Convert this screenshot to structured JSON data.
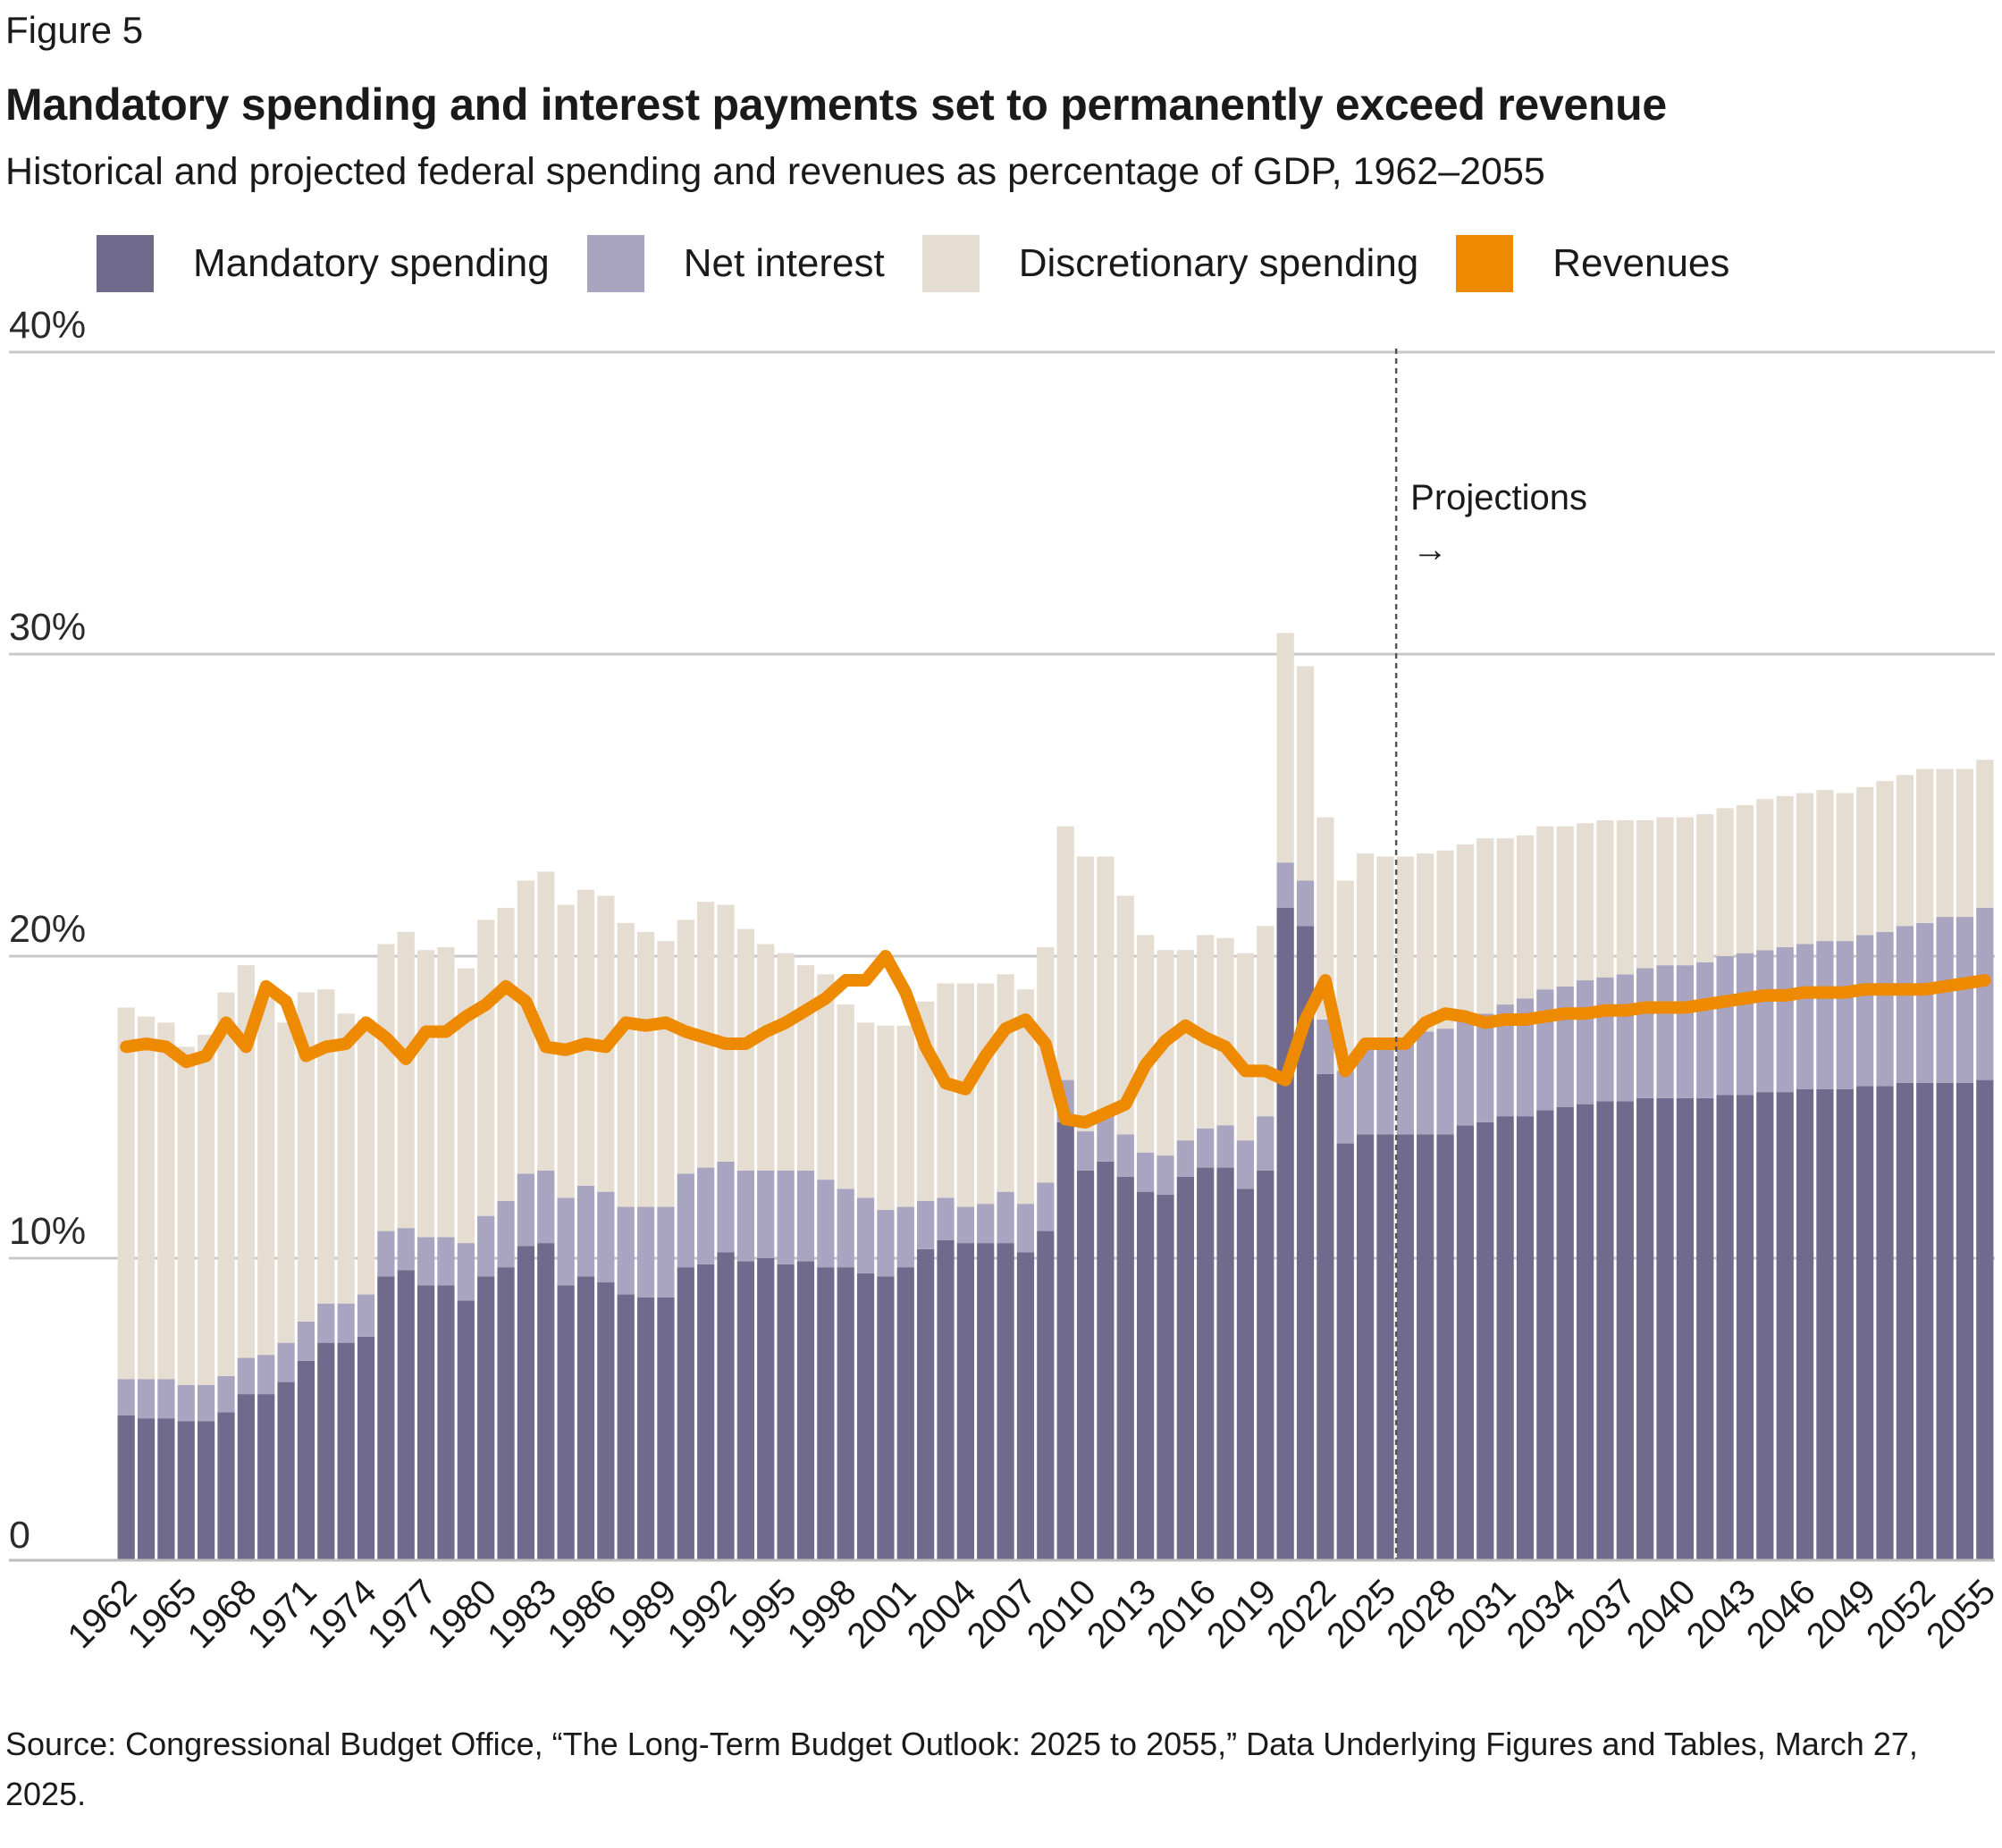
{
  "figure_label": "Figure 5",
  "colors": {
    "mandatory": "#706a8c",
    "net_interest": "#a9a4bf",
    "discretionary": "#e6ddd2",
    "revenues": "#ee8a00",
    "grid": "#c8c8c8",
    "projection_line": "#555555"
  },
  "source_text": "Source: Congressional Budget Office, “The Long-Term Budget Outlook: 2025 to 2055,” Data Underlying Figures and Tables, March 27, 2025.",
  "chart_data": {
    "type": "bar",
    "title": "Mandatory spending and interest payments set to permanently exceed revenue",
    "subtitle": "Historical and projected federal spending and revenues as percentage of GDP, 1962–2055",
    "xlabel": "",
    "ylabel": "",
    "ylim": [
      0,
      40
    ],
    "yticks": [
      0,
      10,
      20,
      30,
      40
    ],
    "ytick_labels": [
      "0",
      "10%",
      "20%",
      "30%",
      "40%"
    ],
    "xtick_labels": [
      "1962",
      "1965",
      "1968",
      "1971",
      "1974",
      "1977",
      "1980",
      "1983",
      "1986",
      "1989",
      "1992",
      "1995",
      "1998",
      "2001",
      "2004",
      "2007",
      "2010",
      "2013",
      "2016",
      "2019",
      "2022",
      "2025",
      "2028",
      "2031",
      "2034",
      "2037",
      "2040",
      "2043",
      "2046",
      "2049",
      "2052",
      "2055"
    ],
    "grid": true,
    "legend_position": "top",
    "stacked": true,
    "projection_start": 2025,
    "projection_label": "Projections",
    "projection_arrow": "→",
    "x": [
      1962,
      1963,
      1964,
      1965,
      1966,
      1967,
      1968,
      1969,
      1970,
      1971,
      1972,
      1973,
      1974,
      1975,
      1976,
      1977,
      1978,
      1979,
      1980,
      1981,
      1982,
      1983,
      1984,
      1985,
      1986,
      1987,
      1988,
      1989,
      1990,
      1991,
      1992,
      1993,
      1994,
      1995,
      1996,
      1997,
      1998,
      1999,
      2000,
      2001,
      2002,
      2003,
      2004,
      2005,
      2006,
      2007,
      2008,
      2009,
      2010,
      2011,
      2012,
      2013,
      2014,
      2015,
      2016,
      2017,
      2018,
      2019,
      2020,
      2021,
      2022,
      2023,
      2024,
      2025,
      2026,
      2027,
      2028,
      2029,
      2030,
      2031,
      2032,
      2033,
      2034,
      2035,
      2036,
      2037,
      2038,
      2039,
      2040,
      2041,
      2042,
      2043,
      2044,
      2045,
      2046,
      2047,
      2048,
      2049,
      2050,
      2051,
      2052,
      2053,
      2054,
      2055
    ],
    "series": [
      {
        "name": "Mandatory spending",
        "kind": "bar",
        "values": [
          4.8,
          4.7,
          4.7,
          4.6,
          4.6,
          4.9,
          5.5,
          5.5,
          5.9,
          6.6,
          7.2,
          7.2,
          7.4,
          9.4,
          9.6,
          9.1,
          9.1,
          8.6,
          9.4,
          9.7,
          10.4,
          10.5,
          9.1,
          9.4,
          9.2,
          8.8,
          8.7,
          8.7,
          9.7,
          9.8,
          10.2,
          9.9,
          10.0,
          9.8,
          9.9,
          9.7,
          9.7,
          9.5,
          9.4,
          9.7,
          10.3,
          10.6,
          10.5,
          10.5,
          10.5,
          10.2,
          10.9,
          14.5,
          12.9,
          13.2,
          12.7,
          12.2,
          12.1,
          12.7,
          13.0,
          13.0,
          12.3,
          12.9,
          21.6,
          21.0,
          16.1,
          13.8,
          14.1,
          14.1,
          14.1,
          14.1,
          14.1,
          14.4,
          14.5,
          14.7,
          14.7,
          14.9,
          15.0,
          15.1,
          15.2,
          15.2,
          15.3,
          15.3,
          15.3,
          15.3,
          15.4,
          15.4,
          15.5,
          15.5,
          15.6,
          15.6,
          15.6,
          15.7,
          15.7,
          15.8,
          15.8,
          15.8,
          15.8,
          15.9
        ]
      },
      {
        "name": "Net interest",
        "kind": "bar",
        "values": [
          1.2,
          1.3,
          1.3,
          1.2,
          1.2,
          1.2,
          1.2,
          1.3,
          1.3,
          1.3,
          1.3,
          1.3,
          1.4,
          1.5,
          1.4,
          1.6,
          1.6,
          1.9,
          2.0,
          2.2,
          2.4,
          2.4,
          2.9,
          3.0,
          3.0,
          2.9,
          3.0,
          3.0,
          3.1,
          3.2,
          3.0,
          3.0,
          2.9,
          3.1,
          3.0,
          2.9,
          2.6,
          2.5,
          2.2,
          2.0,
          1.6,
          1.4,
          1.2,
          1.3,
          1.7,
          1.6,
          1.6,
          1.4,
          1.3,
          1.6,
          1.4,
          1.3,
          1.3,
          1.2,
          1.3,
          1.4,
          1.6,
          1.8,
          1.5,
          1.5,
          1.8,
          2.4,
          2.8,
          2.9,
          3.1,
          3.4,
          3.5,
          3.5,
          3.6,
          3.7,
          3.9,
          4.0,
          4.0,
          4.1,
          4.1,
          4.2,
          4.3,
          4.4,
          4.4,
          4.5,
          4.6,
          4.7,
          4.7,
          4.8,
          4.8,
          4.9,
          4.9,
          5.0,
          5.1,
          5.2,
          5.3,
          5.5,
          5.5,
          5.7
        ]
      },
      {
        "name": "Discretionary spending",
        "kind": "bar",
        "values": [
          12.3,
          12.0,
          11.8,
          11.2,
          11.6,
          12.7,
          13.0,
          11.8,
          10.6,
          10.9,
          10.4,
          9.6,
          9.1,
          9.5,
          9.8,
          9.5,
          9.6,
          9.1,
          9.8,
          9.7,
          9.7,
          9.9,
          9.7,
          9.8,
          9.8,
          9.4,
          9.1,
          8.8,
          8.4,
          8.8,
          8.5,
          8.0,
          7.5,
          7.2,
          6.8,
          6.8,
          6.1,
          5.8,
          6.1,
          6.0,
          6.6,
          7.1,
          7.4,
          7.3,
          7.2,
          7.1,
          7.8,
          8.4,
          9.1,
          8.5,
          7.9,
          7.2,
          6.8,
          6.3,
          6.4,
          6.2,
          6.2,
          6.3,
          7.6,
          7.1,
          6.7,
          6.3,
          6.5,
          6.3,
          6.1,
          5.9,
          5.9,
          5.8,
          5.8,
          5.5,
          5.4,
          5.4,
          5.3,
          5.2,
          5.2,
          5.1,
          4.9,
          4.9,
          4.9,
          4.9,
          4.9,
          4.9,
          5.0,
          5.0,
          5.0,
          5.0,
          4.9,
          4.9,
          5.0,
          5.0,
          5.1,
          4.9,
          4.9,
          4.9
        ]
      },
      {
        "name": "Revenues",
        "kind": "line",
        "values": [
          17.0,
          17.1,
          17.0,
          16.5,
          16.7,
          17.8,
          17.0,
          19.0,
          18.5,
          16.7,
          17.0,
          17.1,
          17.8,
          17.3,
          16.6,
          17.5,
          17.5,
          18.0,
          18.4,
          19.0,
          18.5,
          17.0,
          16.9,
          17.1,
          17.0,
          17.8,
          17.7,
          17.8,
          17.5,
          17.3,
          17.1,
          17.1,
          17.5,
          17.8,
          18.2,
          18.6,
          19.2,
          19.2,
          20.0,
          18.8,
          17.0,
          15.8,
          15.6,
          16.7,
          17.6,
          17.9,
          17.1,
          14.6,
          14.5,
          14.8,
          15.1,
          16.4,
          17.2,
          17.7,
          17.3,
          17.0,
          16.2,
          16.2,
          15.9,
          17.9,
          19.2,
          16.2,
          17.1,
          17.1,
          17.1,
          17.8,
          18.1,
          18.0,
          17.8,
          17.9,
          17.9,
          18.0,
          18.1,
          18.1,
          18.2,
          18.2,
          18.3,
          18.3,
          18.3,
          18.4,
          18.5,
          18.6,
          18.7,
          18.7,
          18.8,
          18.8,
          18.8,
          18.9,
          18.9,
          18.9,
          18.9,
          19.0,
          19.1,
          19.2
        ]
      }
    ]
  }
}
